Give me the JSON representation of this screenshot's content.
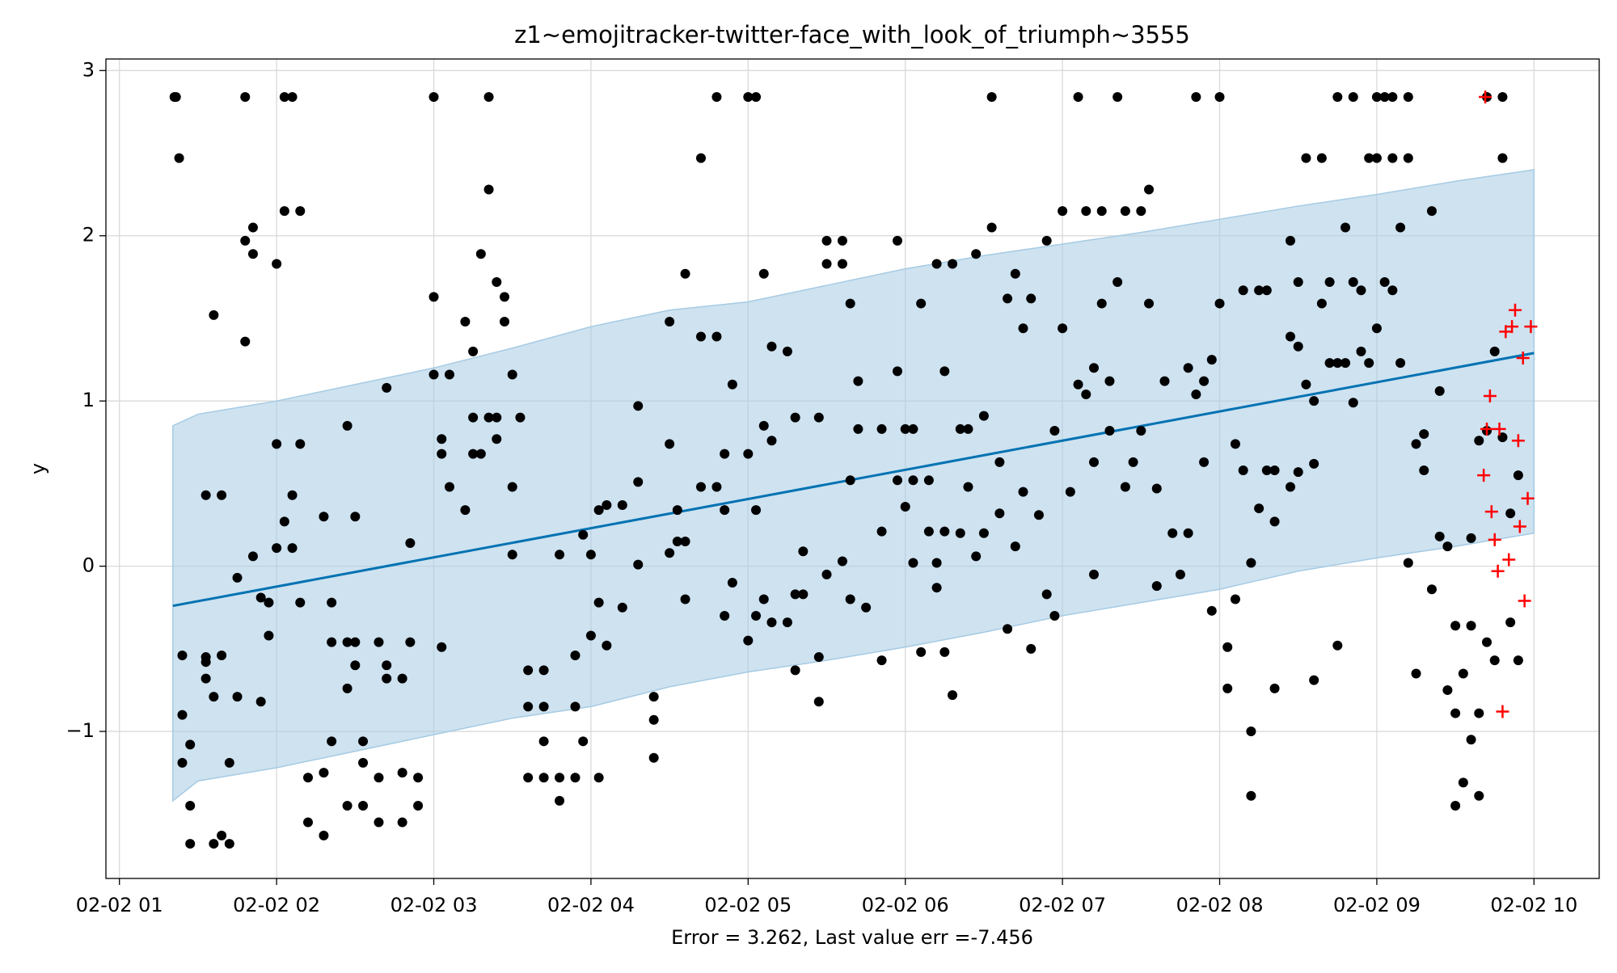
{
  "chart_data": {
    "type": "forecast",
    "title": "z1~emojitracker-twitter-face_with_look_of_triumph~3555",
    "xlabel": "Error = 3.262, Last value err =-7.456",
    "ylabel": "y",
    "xlim": [
      0.914,
      10.415
    ],
    "ylim": [
      -1.89,
      3.07
    ],
    "xticks": [
      {
        "value": 1,
        "label": "02-02 01"
      },
      {
        "value": 2,
        "label": "02-02 02"
      },
      {
        "value": 3,
        "label": "02-02 03"
      },
      {
        "value": 4,
        "label": "02-02 04"
      },
      {
        "value": 5,
        "label": "02-02 05"
      },
      {
        "value": 6,
        "label": "02-02 06"
      },
      {
        "value": 7,
        "label": "02-02 07"
      },
      {
        "value": 8,
        "label": "02-02 08"
      },
      {
        "value": 9,
        "label": "02-02 09"
      },
      {
        "value": 10,
        "label": "02-02 10"
      }
    ],
    "yticks": [
      {
        "value": -1,
        "label": "−1"
      },
      0,
      1,
      2,
      3
    ],
    "grid": true,
    "band": {
      "color": "#a6cbe3",
      "x": [
        1.34,
        1.5,
        2,
        2.5,
        3,
        3.5,
        4,
        4.5,
        5,
        5.5,
        6,
        6.5,
        7,
        7.5,
        8,
        8.5,
        9,
        9.5,
        10
      ],
      "lower": [
        -1.42,
        -1.3,
        -1.22,
        -1.12,
        -1.02,
        -0.92,
        -0.85,
        -0.73,
        -0.64,
        -0.57,
        -0.49,
        -0.4,
        -0.3,
        -0.22,
        -0.14,
        -0.03,
        0.05,
        0.12,
        0.2
      ],
      "upper": [
        0.85,
        0.92,
        1.0,
        1.1,
        1.2,
        1.32,
        1.45,
        1.55,
        1.6,
        1.7,
        1.8,
        1.88,
        1.95,
        2.02,
        2.1,
        2.18,
        2.25,
        2.33,
        2.4
      ]
    },
    "series": [
      {
        "kind": "trend",
        "color": "#0072b2",
        "x": [
          1.34,
          10
        ],
        "values": [
          -0.24,
          1.29
        ]
      },
      {
        "kind": "observed",
        "color": "#000000",
        "x": [
          1.35,
          1.36,
          1.38,
          1.4,
          1.4,
          1.4,
          1.45,
          1.45,
          1.45,
          1.55,
          1.55,
          1.55,
          1.55,
          1.6,
          1.6,
          1.6,
          1.65,
          1.65,
          1.65,
          1.7,
          1.7,
          1.75,
          1.75,
          1.8,
          1.8,
          1.8,
          1.85,
          1.85,
          1.85,
          1.9,
          1.9,
          1.95,
          1.95,
          2.0,
          2.0,
          2.0,
          2.05,
          2.05,
          2.05,
          2.1,
          2.1,
          2.1,
          2.15,
          2.15,
          2.15,
          2.2,
          2.2,
          2.3,
          2.3,
          2.3,
          2.35,
          2.35,
          2.35,
          2.45,
          2.45,
          2.45,
          2.45,
          2.5,
          2.5,
          2.5,
          2.55,
          2.55,
          2.55,
          2.65,
          2.65,
          2.65,
          2.7,
          2.7,
          2.7,
          2.8,
          2.8,
          2.8,
          2.85,
          2.85,
          2.9,
          2.9,
          3.0,
          3.0,
          3.0,
          3.05,
          3.05,
          3.05,
          3.1,
          3.1,
          3.2,
          3.2,
          3.25,
          3.25,
          3.25,
          3.3,
          3.3,
          3.35,
          3.35,
          3.35,
          3.4,
          3.4,
          3.4,
          3.45,
          3.45,
          3.5,
          3.5,
          3.5,
          3.55,
          3.6,
          3.6,
          3.6,
          3.7,
          3.7,
          3.7,
          3.7,
          3.8,
          3.8,
          3.8,
          3.9,
          3.9,
          3.9,
          3.95,
          3.95,
          4.0,
          4.0,
          4.05,
          4.05,
          4.05,
          4.1,
          4.1,
          4.2,
          4.2,
          4.3,
          4.3,
          4.3,
          4.4,
          4.4,
          4.4,
          4.5,
          4.5,
          4.5,
          4.55,
          4.55,
          4.6,
          4.6,
          4.6,
          4.7,
          4.7,
          4.7,
          4.8,
          4.8,
          4.8,
          4.85,
          4.85,
          4.85,
          4.9,
          4.9,
          5.0,
          5.0,
          5.0,
          5.05,
          5.05,
          5.05,
          5.1,
          5.1,
          5.1,
          5.15,
          5.15,
          5.15,
          5.25,
          5.25,
          5.3,
          5.3,
          5.3,
          5.35,
          5.35,
          5.45,
          5.45,
          5.45,
          5.5,
          5.5,
          5.5,
          5.6,
          5.6,
          5.6,
          5.65,
          5.65,
          5.65,
          5.7,
          5.7,
          5.75,
          5.85,
          5.85,
          5.85,
          5.95,
          5.95,
          5.95,
          6.0,
          6.0,
          6.05,
          6.05,
          6.05,
          6.1,
          6.1,
          6.15,
          6.15,
          6.2,
          6.2,
          6.2,
          6.25,
          6.25,
          6.25,
          6.3,
          6.3,
          6.35,
          6.35,
          6.4,
          6.4,
          6.45,
          6.45,
          6.5,
          6.5,
          6.55,
          6.55,
          6.6,
          6.6,
          6.65,
          6.65,
          6.7,
          6.7,
          6.75,
          6.75,
          6.8,
          6.8,
          6.85,
          6.9,
          6.9,
          6.95,
          6.95,
          7.0,
          7.0,
          7.05,
          7.1,
          7.1,
          7.15,
          7.15,
          7.2,
          7.2,
          7.2,
          7.25,
          7.25,
          7.3,
          7.3,
          7.35,
          7.35,
          7.4,
          7.4,
          7.45,
          7.5,
          7.5,
          7.55,
          7.55,
          7.6,
          7.6,
          7.65,
          7.7,
          7.75,
          7.8,
          7.8,
          7.85,
          7.85,
          7.9,
          7.9,
          7.95,
          7.95,
          8.0,
          8.0,
          8.05,
          8.05,
          8.1,
          8.1,
          8.15,
          8.15,
          8.2,
          8.2,
          8.2,
          8.25,
          8.25,
          8.3,
          8.3,
          8.35,
          8.35,
          8.35,
          8.45,
          8.45,
          8.45,
          8.5,
          8.5,
          8.5,
          8.55,
          8.55,
          8.6,
          8.6,
          8.6,
          8.65,
          8.65,
          8.7,
          8.7,
          8.75,
          8.75,
          8.75,
          8.8,
          8.8,
          8.85,
          8.85,
          8.85,
          8.9,
          8.9,
          8.95,
          8.95,
          9.0,
          9.0,
          9.0,
          9.05,
          9.05,
          9.1,
          9.1,
          9.1,
          9.15,
          9.15,
          9.2,
          9.2,
          9.2,
          9.25,
          9.25,
          9.3,
          9.3,
          9.35,
          9.35,
          9.4,
          9.4,
          9.45,
          9.45,
          9.5,
          9.5,
          9.5,
          9.55,
          9.55,
          9.6,
          9.6,
          9.6,
          9.65,
          9.65,
          9.65,
          9.7,
          9.7,
          9.7,
          9.75,
          9.75,
          9.8,
          9.8,
          9.8,
          9.85,
          9.85,
          9.9,
          9.9
        ],
        "values": [
          2.84,
          2.84,
          2.47,
          -0.54,
          -0.9,
          -1.19,
          -1.08,
          -1.45,
          -1.68,
          -0.58,
          -0.55,
          -0.68,
          0.43,
          -0.79,
          -1.68,
          1.52,
          0.43,
          -0.54,
          -1.63,
          -1.19,
          -1.68,
          -0.79,
          -0.07,
          2.84,
          1.97,
          1.36,
          1.89,
          2.05,
          0.06,
          -0.19,
          -0.82,
          -0.42,
          -0.22,
          1.83,
          0.74,
          0.11,
          2.84,
          2.15,
          0.27,
          2.84,
          0.43,
          0.11,
          2.15,
          0.74,
          -0.22,
          -1.28,
          -1.55,
          0.3,
          -1.25,
          -1.63,
          -0.46,
          -0.22,
          -1.06,
          0.85,
          -1.45,
          -0.46,
          -0.74,
          0.3,
          -0.6,
          -0.46,
          -1.06,
          -1.45,
          -1.19,
          -1.55,
          -0.46,
          -1.28,
          1.08,
          -0.68,
          -0.6,
          -1.25,
          -1.55,
          -0.68,
          0.14,
          -0.46,
          -1.45,
          -1.28,
          2.84,
          1.16,
          1.63,
          0.77,
          0.68,
          -0.49,
          0.48,
          1.16,
          1.48,
          0.34,
          1.3,
          0.9,
          0.68,
          1.89,
          0.68,
          2.84,
          2.28,
          0.9,
          1.72,
          0.77,
          0.9,
          1.63,
          1.48,
          0.48,
          1.16,
          0.07,
          0.9,
          -0.63,
          -0.85,
          -1.28,
          -0.85,
          -1.06,
          -1.28,
          -0.63,
          0.07,
          -1.28,
          -1.42,
          -0.54,
          -0.85,
          -1.28,
          0.19,
          -1.06,
          -0.42,
          0.07,
          0.34,
          -0.22,
          -1.28,
          0.37,
          -0.48,
          0.37,
          -0.25,
          0.97,
          0.01,
          0.51,
          -0.79,
          -1.16,
          -0.93,
          1.48,
          0.74,
          0.08,
          0.34,
          0.15,
          1.77,
          -0.2,
          0.15,
          1.39,
          0.48,
          2.47,
          2.84,
          1.39,
          0.48,
          -0.3,
          0.68,
          0.34,
          1.1,
          -0.1,
          2.84,
          0.68,
          -0.45,
          2.84,
          0.34,
          -0.3,
          1.77,
          0.85,
          -0.2,
          1.33,
          0.76,
          -0.34,
          1.3,
          -0.34,
          0.9,
          -0.63,
          -0.17,
          0.09,
          -0.17,
          -0.82,
          -0.55,
          0.9,
          -0.05,
          1.97,
          1.83,
          0.03,
          1.97,
          1.83,
          0.52,
          1.59,
          -0.2,
          0.83,
          1.12,
          -0.25,
          0.83,
          0.21,
          -0.57,
          1.97,
          1.18,
          0.52,
          0.83,
          0.36,
          0.83,
          0.02,
          0.52,
          1.59,
          -0.52,
          0.21,
          0.52,
          1.83,
          -0.13,
          0.02,
          1.18,
          -0.52,
          0.21,
          1.83,
          -0.78,
          0.83,
          0.2,
          0.48,
          0.83,
          1.89,
          0.06,
          0.91,
          0.2,
          2.84,
          2.05,
          0.32,
          0.63,
          1.62,
          -0.38,
          1.77,
          0.12,
          0.45,
          1.44,
          1.62,
          -0.5,
          0.31,
          1.97,
          -0.17,
          -0.3,
          0.82,
          1.44,
          2.15,
          0.45,
          2.84,
          1.1,
          2.15,
          1.04,
          1.2,
          0.63,
          -0.05,
          1.59,
          2.15,
          0.82,
          1.12,
          2.84,
          1.72,
          2.15,
          0.48,
          0.63,
          2.15,
          0.82,
          2.28,
          1.59,
          0.47,
          -0.12,
          1.12,
          0.2,
          -0.05,
          1.2,
          0.2,
          2.84,
          1.04,
          1.12,
          0.63,
          1.25,
          -0.27,
          2.84,
          1.59,
          -0.49,
          -0.74,
          0.74,
          -0.2,
          0.58,
          1.67,
          -1.0,
          -1.39,
          0.02,
          1.67,
          0.35,
          0.58,
          1.67,
          0.58,
          0.27,
          -0.74,
          1.97,
          1.39,
          0.48,
          1.33,
          0.57,
          1.72,
          2.47,
          1.1,
          -0.69,
          1.0,
          0.62,
          2.47,
          1.59,
          1.72,
          1.23,
          2.84,
          1.23,
          -0.48,
          1.23,
          2.05,
          2.84,
          1.72,
          0.99,
          1.3,
          1.67,
          2.47,
          1.23,
          2.84,
          2.47,
          1.44,
          2.84,
          1.72,
          2.84,
          2.47,
          1.67,
          2.05,
          1.23,
          2.84,
          2.47,
          0.02,
          0.74,
          -0.65,
          0.8,
          0.58,
          2.15,
          -0.14,
          1.06,
          0.18,
          0.12,
          -0.75,
          -0.36,
          -0.89,
          -1.45,
          -0.65,
          -1.31,
          0.17,
          -0.36,
          -1.05,
          -0.89,
          0.76,
          -1.39,
          2.84,
          0.82,
          -0.46,
          1.3,
          -0.57,
          2.84,
          2.47,
          0.78,
          0.32,
          -0.34,
          0.55,
          -0.57
        ]
      },
      {
        "kind": "future",
        "color": "#ff0000",
        "x": [
          9.69,
          9.72,
          9.7,
          9.78,
          9.68,
          9.73,
          9.75,
          9.77,
          9.8,
          9.82,
          9.84,
          9.86,
          9.88,
          9.9,
          9.91,
          9.93,
          9.94,
          9.96,
          9.98
        ],
        "values": [
          2.84,
          1.03,
          0.83,
          0.83,
          0.55,
          0.33,
          0.16,
          -0.03,
          -0.88,
          1.42,
          0.04,
          1.45,
          1.55,
          0.76,
          0.24,
          1.26,
          -0.21,
          0.41,
          1.45
        ]
      }
    ]
  }
}
